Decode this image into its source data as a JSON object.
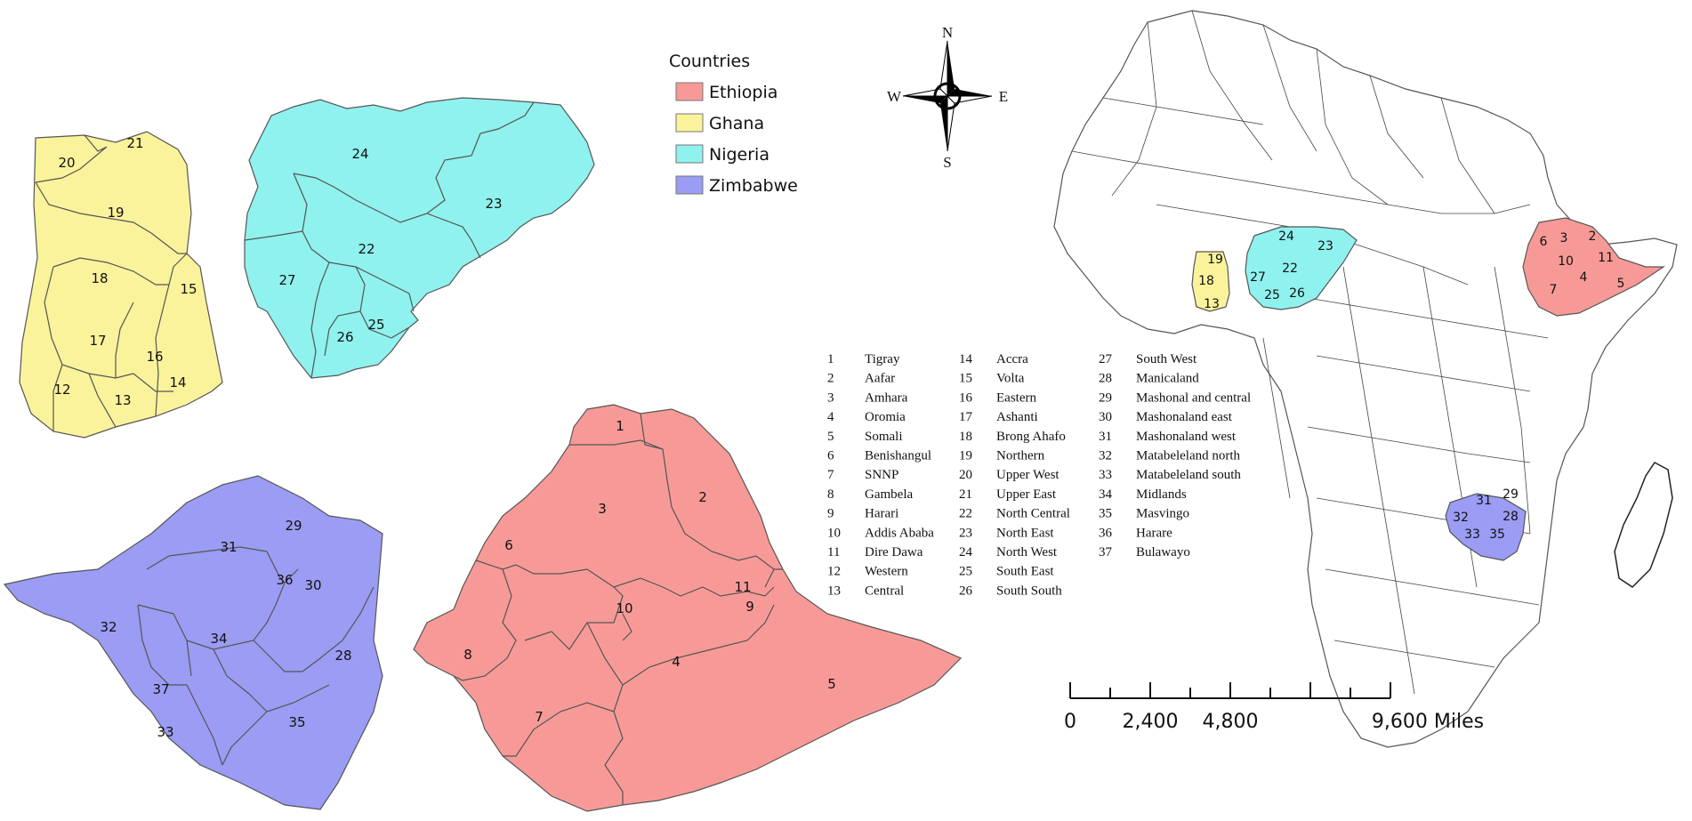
{
  "legend": {
    "title": "Countries",
    "items": [
      {
        "name": "Ethiopia",
        "color": "#f79a97"
      },
      {
        "name": "Ghana",
        "color": "#fbf39b"
      },
      {
        "name": "Nigeria",
        "color": "#8ff2ee"
      },
      {
        "name": "Zimbabwe",
        "color": "#9b9cf4"
      }
    ]
  },
  "north_arrow": {
    "n": "N",
    "s": "S",
    "e": "E",
    "w": "W"
  },
  "scale_bar": {
    "labels": [
      "0",
      "2,400",
      "4,800",
      "9,600 Miles"
    ]
  },
  "region_key": [
    {
      "num": "1",
      "name": "Tigray"
    },
    {
      "num": "2",
      "name": "Aafar"
    },
    {
      "num": "3",
      "name": "Amhara"
    },
    {
      "num": "4",
      "name": "Oromia"
    },
    {
      "num": "5",
      "name": "Somali"
    },
    {
      "num": "6",
      "name": "Benishangul"
    },
    {
      "num": "7",
      "name": "SNNP"
    },
    {
      "num": "8",
      "name": "Gambela"
    },
    {
      "num": "9",
      "name": "Harari"
    },
    {
      "num": "10",
      "name": "Addis Ababa"
    },
    {
      "num": "11",
      "name": "Dire Dawa"
    },
    {
      "num": "12",
      "name": "Western"
    },
    {
      "num": "13",
      "name": "Central"
    },
    {
      "num": "14",
      "name": "Accra"
    },
    {
      "num": "15",
      "name": "Volta"
    },
    {
      "num": "16",
      "name": "Eastern"
    },
    {
      "num": "17",
      "name": "Ashanti"
    },
    {
      "num": "18",
      "name": "Brong Ahafo"
    },
    {
      "num": "19",
      "name": "Northern"
    },
    {
      "num": "20",
      "name": "Upper West"
    },
    {
      "num": "21",
      "name": "Upper East"
    },
    {
      "num": "22",
      "name": "North Central"
    },
    {
      "num": "23",
      "name": "North East"
    },
    {
      "num": "24",
      "name": "North West"
    },
    {
      "num": "25",
      "name": "South East"
    },
    {
      "num": "26",
      "name": "South South"
    },
    {
      "num": "27",
      "name": "South West"
    },
    {
      "num": "28",
      "name": "Manicaland"
    },
    {
      "num": "29",
      "name": "Mashonal and central"
    },
    {
      "num": "30",
      "name": "Mashonaland east"
    },
    {
      "num": "31",
      "name": "Mashonaland west"
    },
    {
      "num": "32",
      "name": "Matabeleland north"
    },
    {
      "num": "33",
      "name": "Matabeleland south"
    },
    {
      "num": "34",
      "name": "Midlands"
    },
    {
      "num": "35",
      "name": "Masvingo"
    },
    {
      "num": "36",
      "name": "Harare"
    },
    {
      "num": "37",
      "name": "Bulawayo"
    }
  ],
  "map_labels": {
    "ghana": [
      "20",
      "21",
      "19",
      "18",
      "15",
      "17",
      "16",
      "12",
      "13",
      "14"
    ],
    "nigeria": [
      "24",
      "23",
      "22",
      "27",
      "26",
      "25"
    ],
    "zimbabwe": [
      "29",
      "31",
      "36",
      "30",
      "32",
      "34",
      "28",
      "37",
      "33",
      "35"
    ],
    "ethiopia": [
      "1",
      "2",
      "3",
      "6",
      "10",
      "11",
      "9",
      "8",
      "4",
      "5",
      "7"
    ],
    "africa": [
      "19",
      "18",
      "13",
      "24",
      "23",
      "22",
      "27",
      "25",
      "26",
      "6",
      "3",
      "2",
      "10",
      "11",
      "7",
      "4",
      "5",
      "31",
      "29",
      "32",
      "28",
      "33",
      "35"
    ]
  }
}
